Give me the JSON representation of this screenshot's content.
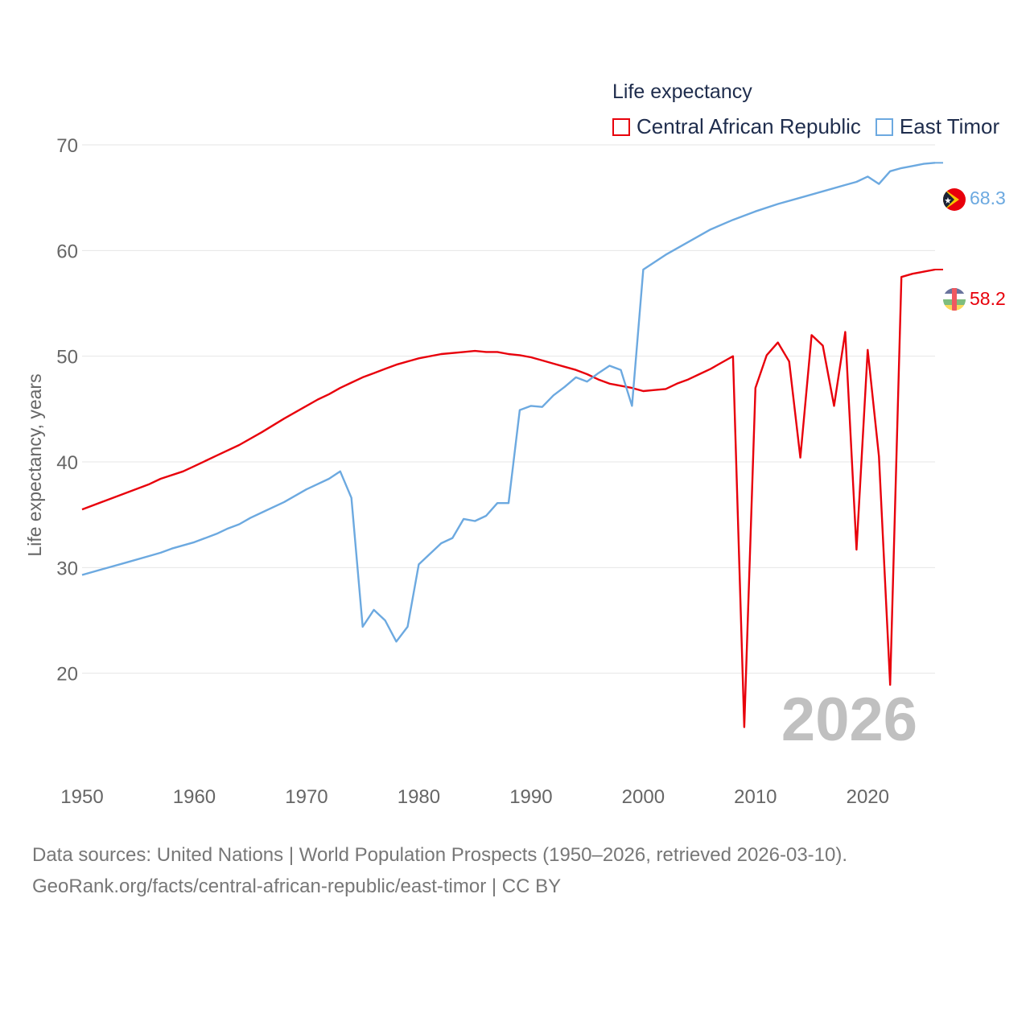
{
  "chart_data": {
    "type": "line",
    "title": "Life expectancy",
    "xlabel": "",
    "ylabel": "Life expectancy, years",
    "xlim": [
      1950,
      2026
    ],
    "ylim": [
      10,
      70
    ],
    "grid": true,
    "legend_position": "top-right",
    "x_ticks": [
      1950,
      1960,
      1970,
      1980,
      1990,
      2000,
      2010,
      2020
    ],
    "y_ticks": [
      20,
      30,
      40,
      50,
      60,
      70
    ],
    "watermark_year": "2026",
    "series": [
      {
        "name": "Central African Republic",
        "color": "#e8000b",
        "end_label": "58.2",
        "x": [
          1950,
          1952,
          1954,
          1956,
          1957,
          1959,
          1960,
          1962,
          1964,
          1966,
          1968,
          1970,
          1971,
          1972,
          1973,
          1974,
          1975,
          1976,
          1977,
          1978,
          1980,
          1982,
          1984,
          1985,
          1986,
          1987,
          1988,
          1989,
          1990,
          1991,
          1992,
          1993,
          1994,
          1995,
          1996,
          1997,
          1998,
          1999,
          2000,
          2001,
          2002,
          2003,
          2004,
          2005,
          2006,
          2007,
          2008,
          2009,
          2010,
          2011,
          2012,
          2013,
          2014,
          2015,
          2016,
          2017,
          2018,
          2019,
          2020,
          2021,
          2022,
          2023,
          2024,
          2025,
          2026
        ],
        "values": [
          35.5,
          36.3,
          37.1,
          37.9,
          38.4,
          39.1,
          39.6,
          40.6,
          41.6,
          42.8,
          44.1,
          45.3,
          45.9,
          46.4,
          47.0,
          47.5,
          48.0,
          48.4,
          48.8,
          49.2,
          49.8,
          50.2,
          50.4,
          50.5,
          50.4,
          50.4,
          50.2,
          50.1,
          49.9,
          49.6,
          49.3,
          49.0,
          48.7,
          48.3,
          47.8,
          47.4,
          47.2,
          47.0,
          46.7,
          46.8,
          46.9,
          47.4,
          47.8,
          48.3,
          48.8,
          49.4,
          50.0,
          14.9,
          47.0,
          50.1,
          51.3,
          49.5,
          40.4,
          52.0,
          51.0,
          45.3,
          52.3,
          31.7,
          50.6,
          40.5,
          18.9,
          57.5,
          57.8,
          58.0,
          58.2
        ]
      },
      {
        "name": "East Timor",
        "color": "#6ca9e0",
        "end_label": "68.3",
        "x": [
          1950,
          1952,
          1954,
          1956,
          1957,
          1958,
          1960,
          1962,
          1963,
          1964,
          1965,
          1966,
          1968,
          1970,
          1972,
          1973,
          1974,
          1975,
          1976,
          1977,
          1978,
          1979,
          1980,
          1982,
          1983,
          1984,
          1985,
          1986,
          1987,
          1988,
          1989,
          1990,
          1991,
          1992,
          1993,
          1994,
          1995,
          1996,
          1997,
          1998,
          1999,
          2000,
          2002,
          2004,
          2006,
          2008,
          2010,
          2012,
          2014,
          2016,
          2018,
          2019,
          2020,
          2021,
          2022,
          2023,
          2024,
          2025,
          2026
        ],
        "values": [
          29.3,
          29.9,
          30.5,
          31.1,
          31.4,
          31.8,
          32.4,
          33.2,
          33.7,
          34.1,
          34.7,
          35.2,
          36.2,
          37.4,
          38.4,
          39.1,
          36.6,
          24.4,
          26.0,
          25.0,
          23.0,
          24.4,
          30.3,
          32.3,
          32.8,
          34.6,
          34.4,
          34.9,
          36.1,
          36.1,
          44.9,
          45.3,
          45.2,
          46.3,
          47.1,
          48.0,
          47.6,
          48.4,
          49.1,
          48.7,
          45.3,
          58.2,
          59.6,
          60.8,
          62.0,
          62.9,
          63.7,
          64.4,
          65.0,
          65.6,
          66.2,
          66.5,
          67.0,
          66.3,
          67.5,
          67.8,
          68.0,
          68.2,
          68.3
        ]
      }
    ]
  },
  "legend": {
    "title": "Life expectancy",
    "items": [
      "Central African Republic",
      "East Timor"
    ]
  },
  "footer": {
    "line1": "Data sources: United Nations | World Population Prospects (1950–2026, retrieved 2026-03-10).",
    "line2": "GeoRank.org/facts/central-african-republic/east-timor | CC BY"
  },
  "icons": {
    "car_flag": "central-african-republic-flag-icon",
    "tl_flag": "east-timor-flag-icon"
  }
}
